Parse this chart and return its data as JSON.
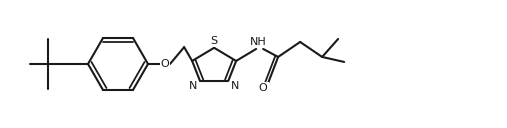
{
  "bg": "#ffffff",
  "lc": "#1a1a1a",
  "lw": 1.5,
  "fw": 5.07,
  "fh": 1.28,
  "dpi": 100,
  "atoms": {
    "S_label": "S",
    "N1_label": "N",
    "N2_label": "N",
    "NH_label": "NH",
    "O_ether_label": "O",
    "O_carbonyl_label": "O"
  }
}
